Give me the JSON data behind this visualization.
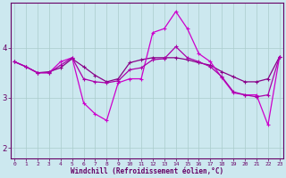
{
  "x": [
    0,
    1,
    2,
    3,
    4,
    5,
    6,
    7,
    8,
    9,
    10,
    11,
    12,
    13,
    14,
    15,
    16,
    17,
    18,
    19,
    20,
    21,
    22,
    23
  ],
  "line1": [
    3.72,
    3.62,
    3.5,
    3.52,
    3.6,
    3.78,
    3.62,
    3.45,
    3.32,
    3.38,
    3.7,
    3.76,
    3.8,
    3.8,
    3.8,
    3.76,
    3.7,
    3.65,
    3.52,
    3.42,
    3.32,
    3.32,
    3.38,
    3.82
  ],
  "line2": [
    3.72,
    3.62,
    3.5,
    3.5,
    3.72,
    3.8,
    2.9,
    2.68,
    2.55,
    3.3,
    3.38,
    3.38,
    4.3,
    4.38,
    4.72,
    4.38,
    3.88,
    3.72,
    3.4,
    3.1,
    3.06,
    3.06,
    2.46,
    3.82
  ],
  "line3": [
    3.72,
    3.62,
    3.5,
    3.5,
    3.65,
    3.8,
    3.38,
    3.32,
    3.3,
    3.34,
    3.56,
    3.6,
    3.76,
    3.78,
    4.02,
    3.8,
    3.72,
    3.62,
    3.42,
    3.12,
    3.06,
    3.02,
    3.06,
    3.82
  ],
  "color_line1": "#880088",
  "color_line2": "#cc00cc",
  "color_line3": "#aa00aa",
  "background_color": "#cce8ef",
  "grid_color": "#aacccc",
  "xlabel": "Windchill (Refroidissement éolien,°C)",
  "yticks": [
    2,
    3,
    4
  ],
  "xticks": [
    0,
    1,
    2,
    3,
    4,
    5,
    6,
    7,
    8,
    9,
    10,
    11,
    12,
    13,
    14,
    15,
    16,
    17,
    18,
    19,
    20,
    21,
    22,
    23
  ],
  "ylim": [
    1.8,
    4.9
  ],
  "xlim": [
    -0.3,
    23.3
  ],
  "marker": "+",
  "markersize": 3,
  "linewidth": 0.9,
  "tick_color": "#660066",
  "label_color": "#660066",
  "spine_color": "#660066"
}
